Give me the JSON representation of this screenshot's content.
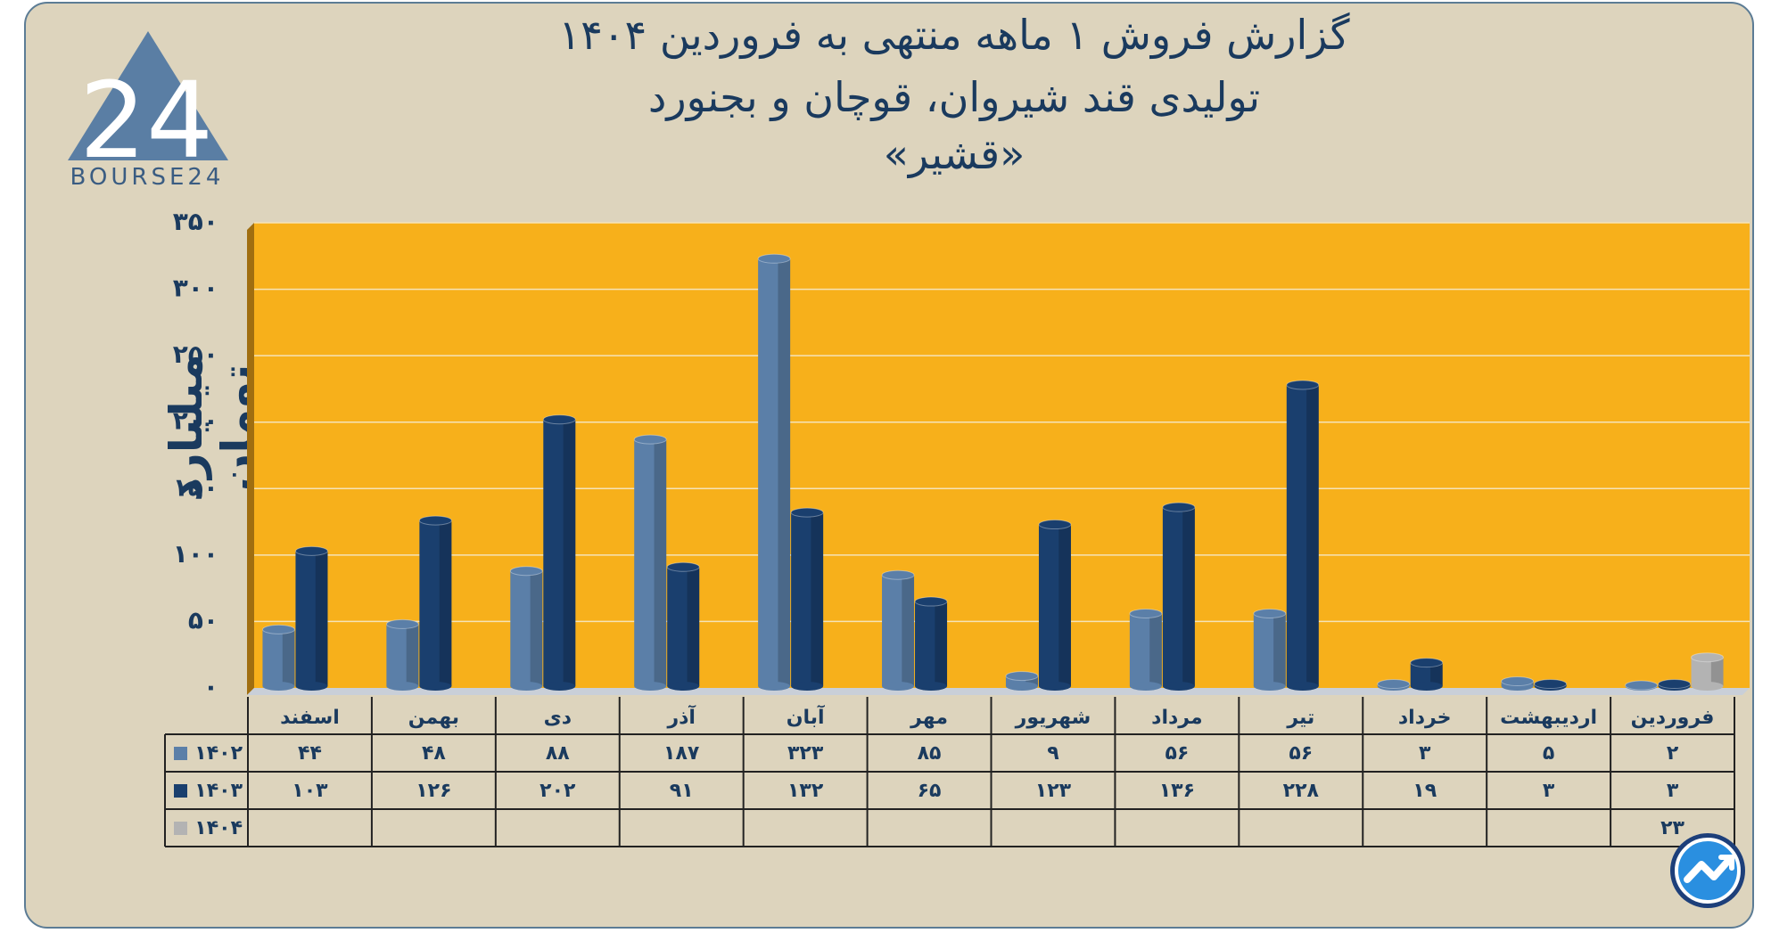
{
  "title": {
    "line1": "گزارش  فروش ۱ ماهه منتهی به فروردین ۱۴۰۴",
    "line2": "تولیدی قند شیروان، قوچان و بجنورد",
    "line3": "«قشیر»"
  },
  "logo": {
    "text": "BOURSE24",
    "mark": "24"
  },
  "chart_data": {
    "type": "bar",
    "ylabel": "میلیارد تومان",
    "ylim": [
      0,
      350
    ],
    "yticks": [
      "۰",
      "۵۰",
      "۱۰۰",
      "۱۵۰",
      "۲۰۰",
      "۲۵۰",
      "۳۰۰",
      "۳۵۰"
    ],
    "ytick_values": [
      0,
      50,
      100,
      150,
      200,
      250,
      300,
      350
    ],
    "categories": [
      "فروردین",
      "اردیبهشت",
      "خرداد",
      "تیر",
      "مرداد",
      "شهریور",
      "مهر",
      "آبان",
      "آذر",
      "دی",
      "بهمن",
      "اسفند"
    ],
    "series": [
      {
        "name": "۱۴۰۲",
        "color": "#5b7fa8",
        "values": [
          2,
          5,
          3,
          56,
          56,
          9,
          85,
          323,
          187,
          88,
          48,
          44
        ],
        "labels": [
          "۲",
          "۵",
          "۳",
          "۵۶",
          "۵۶",
          "۹",
          "۸۵",
          "۳۲۳",
          "۱۸۷",
          "۸۸",
          "۴۸",
          "۴۴"
        ]
      },
      {
        "name": "۱۴۰۳",
        "color": "#1a3f6e",
        "values": [
          3,
          3,
          19,
          228,
          136,
          123,
          65,
          132,
          91,
          202,
          126,
          103
        ],
        "labels": [
          "۳",
          "۳",
          "۱۹",
          "۲۲۸",
          "۱۳۶",
          "۱۲۳",
          "۶۵",
          "۱۳۲",
          "۹۱",
          "۲۰۲",
          "۱۲۶",
          "۱۰۳"
        ]
      },
      {
        "name": "۱۴۰۴",
        "color": "#b3b3b3",
        "values": [
          23,
          null,
          null,
          null,
          null,
          null,
          null,
          null,
          null,
          null,
          null,
          null
        ],
        "labels": [
          "۲۳",
          "",
          "",
          "",
          "",
          "",
          "",
          "",
          "",
          "",
          "",
          ""
        ]
      }
    ],
    "plot_background": "#f7b01b",
    "grid": true,
    "legend": "data-table"
  }
}
